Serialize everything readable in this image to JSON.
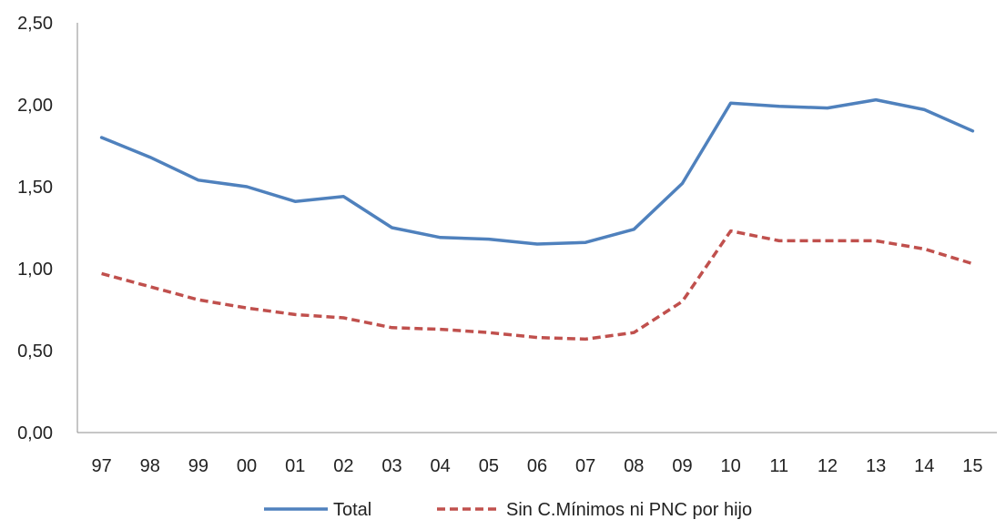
{
  "chart_data": {
    "type": "line",
    "title": "",
    "xlabel": "",
    "ylabel": "",
    "categories": [
      "97",
      "98",
      "99",
      "00",
      "01",
      "02",
      "03",
      "04",
      "05",
      "06",
      "07",
      "08",
      "09",
      "10",
      "11",
      "12",
      "13",
      "14",
      "15"
    ],
    "yticks": [
      "0,00",
      "0,50",
      "1,00",
      "1,50",
      "2,00",
      "2,50"
    ],
    "ylim": [
      0,
      2.5
    ],
    "grid": false,
    "legend_position": "bottom",
    "series": [
      {
        "name": "Total",
        "color": "#4f81bd",
        "dash": "solid",
        "values": [
          1.8,
          1.68,
          1.54,
          1.5,
          1.41,
          1.44,
          1.25,
          1.19,
          1.18,
          1.15,
          1.16,
          1.24,
          1.52,
          2.01,
          1.99,
          1.98,
          2.03,
          1.97,
          1.84
        ]
      },
      {
        "name": "Sin C.Mínimos ni PNC por hijo",
        "color": "#c0504d",
        "dash": "dashed",
        "values": [
          0.97,
          0.89,
          0.81,
          0.76,
          0.72,
          0.7,
          0.64,
          0.63,
          0.61,
          0.58,
          0.57,
          0.61,
          0.8,
          1.23,
          1.17,
          1.17,
          1.17,
          1.12,
          1.03
        ]
      }
    ]
  }
}
